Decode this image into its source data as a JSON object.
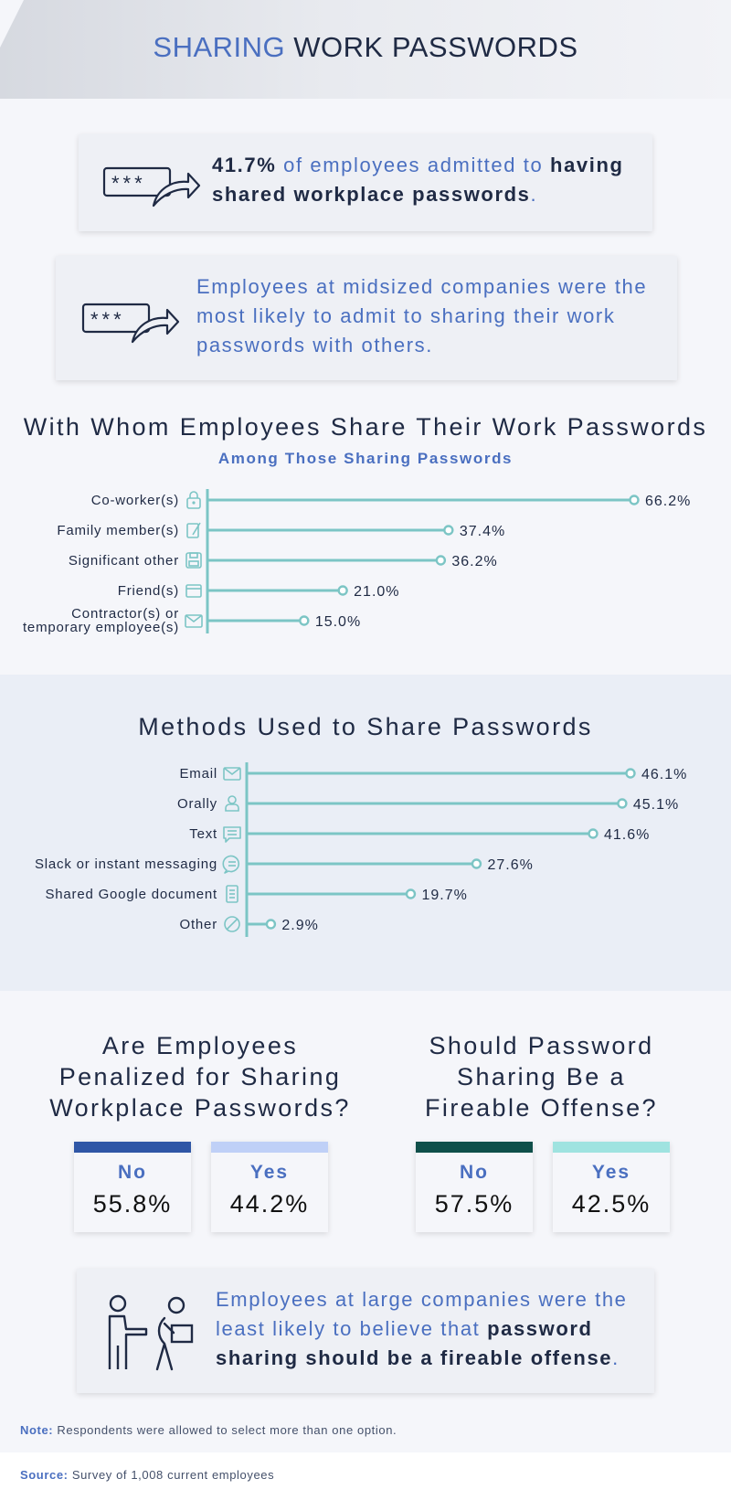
{
  "header": {
    "title_part1": "SHARING",
    "title_part2": "WORK PASSWORDS"
  },
  "card1": {
    "stat": "41.7%",
    "text_mid": " of employees admitted to ",
    "text_strong": "having shared workplace passwords",
    "text_end": "."
  },
  "card2": {
    "text": "Employees at midsized companies were the most likely to admit to sharing their work passwords with others."
  },
  "chart1_header": {
    "title": "With Whom Employees Share Their Work Passwords",
    "subtitle": "Among Those Sharing Passwords"
  },
  "chart2_header": {
    "title": "Methods Used to Share Passwords"
  },
  "penalized": {
    "title": "Are Employees Penalized for Sharing Workplace Passwords?",
    "no_label": "No",
    "no_value": "55.8%",
    "yes_label": "Yes",
    "yes_value": "44.2%",
    "no_color": "#2f56a6",
    "yes_color": "#bfd0f7"
  },
  "fireable": {
    "title": "Should Password Sharing Be a Fireable Offense?",
    "no_label": "No",
    "no_value": "57.5%",
    "yes_label": "Yes",
    "yes_value": "42.5%",
    "no_color": "#0f4f4a",
    "yes_color": "#9fe3e0"
  },
  "card3": {
    "text_plain": "Employees at large companies were the least likely to believe that ",
    "text_strong": "password sharing should be a fireable offense",
    "text_end": "."
  },
  "note": {
    "label": "Note:",
    "text": " Respondents were allowed to select more than one option."
  },
  "source": {
    "label": "Source:",
    "text": " Survey of 1,008 current employees"
  },
  "colors": {
    "accent": "#4a6fc0",
    "navy": "#1f2a44",
    "teal": "#7cc5c5"
  },
  "chart_data": [
    {
      "type": "bar",
      "title": "With Whom Employees Share Their Work Passwords",
      "subtitle": "Among Those Sharing Passwords",
      "categories": [
        "Co-worker(s)",
        "Family member(s)",
        "Significant other",
        "Friend(s)",
        "Contractor(s) or temporary employee(s)"
      ],
      "icons": [
        "lock-icon",
        "pencil-icon",
        "floppy-disk-icon",
        "window-icon",
        "envelope-icon"
      ],
      "values": [
        66.2,
        37.4,
        36.2,
        21.0,
        15.0
      ],
      "labels": [
        "66.2%",
        "37.4%",
        "36.2%",
        "21.0%",
        "15.0%"
      ],
      "orientation": "horizontal",
      "xlim": [
        0,
        66.2
      ],
      "grid": false
    },
    {
      "type": "bar",
      "title": "Methods Used to Share Passwords",
      "categories": [
        "Email",
        "Orally",
        "Text",
        "Slack or instant messaging",
        "Shared Google document",
        "Other"
      ],
      "icons": [
        "envelope-icon",
        "person-icon",
        "message-icon",
        "chat-bubble-icon",
        "document-icon",
        "slash-circle-icon"
      ],
      "values": [
        46.1,
        45.1,
        41.6,
        27.6,
        19.7,
        2.9
      ],
      "labels": [
        "46.1%",
        "45.1%",
        "41.6%",
        "27.6%",
        "19.7%",
        "2.9%"
      ],
      "orientation": "horizontal",
      "xlim": [
        0,
        46.1
      ],
      "grid": false
    }
  ]
}
